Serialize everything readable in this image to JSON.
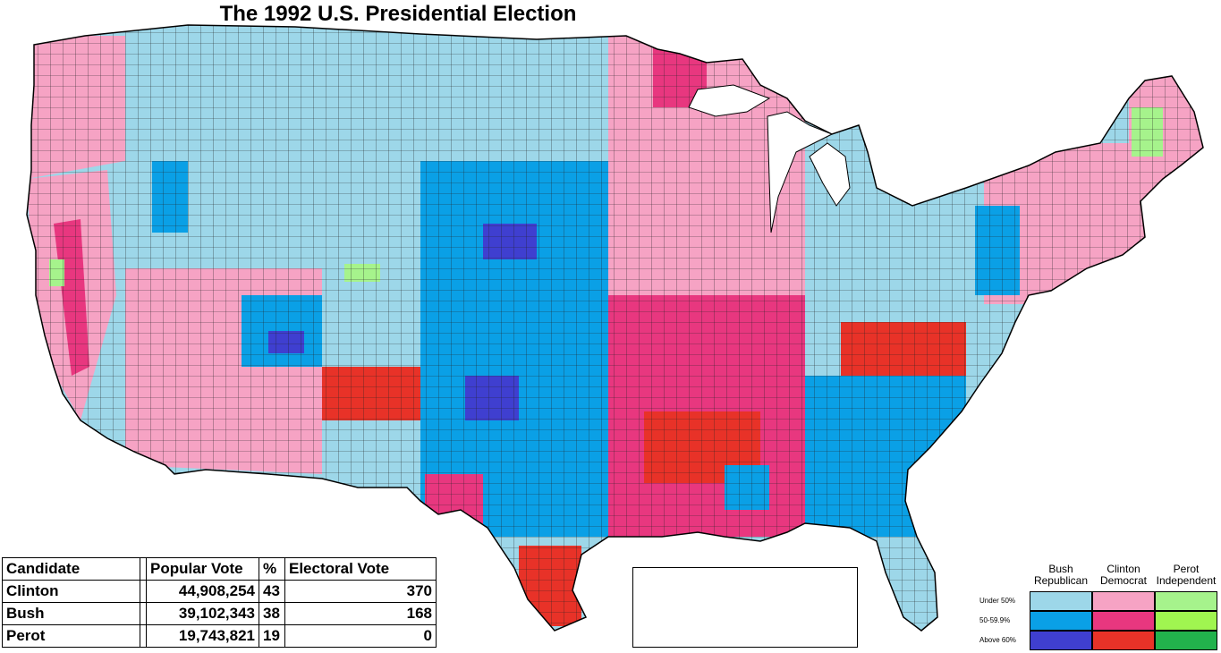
{
  "title": "The 1992 U.S. Presidential Election",
  "colors": {
    "bush_under50": "#9dd7e9",
    "bush_50_60": "#0aa0e6",
    "bush_above60": "#3f3fd0",
    "clinton_under50": "#f6a3c4",
    "clinton_50_60": "#e8377f",
    "clinton_above60": "#e83228",
    "perot_under50": "#a6f38c",
    "perot_50_60": "#a0f550",
    "perot_above60": "#22b24c",
    "border": "#000000"
  },
  "results_table": {
    "headers": [
      "Candidate",
      "Popular Vote",
      "%",
      "Electoral Vote"
    ],
    "rows": [
      {
        "candidate": "Clinton",
        "popular_vote": "44,908,254",
        "pct": "43",
        "electoral_vote": "370"
      },
      {
        "candidate": "Bush",
        "popular_vote": "39,102,343",
        "pct": "38",
        "electoral_vote": "168"
      },
      {
        "candidate": "Perot",
        "popular_vote": "19,743,821",
        "pct": "19",
        "electoral_vote": "0"
      }
    ]
  },
  "legend": {
    "candidates": [
      {
        "line1": "Bush",
        "line2": "Republican"
      },
      {
        "line1": "Clinton",
        "line2": "Democrat"
      },
      {
        "line1": "Perot",
        "line2": "Independent"
      }
    ],
    "rows": [
      "Under 50%",
      "50-59.9%",
      "Above 60%"
    ]
  }
}
